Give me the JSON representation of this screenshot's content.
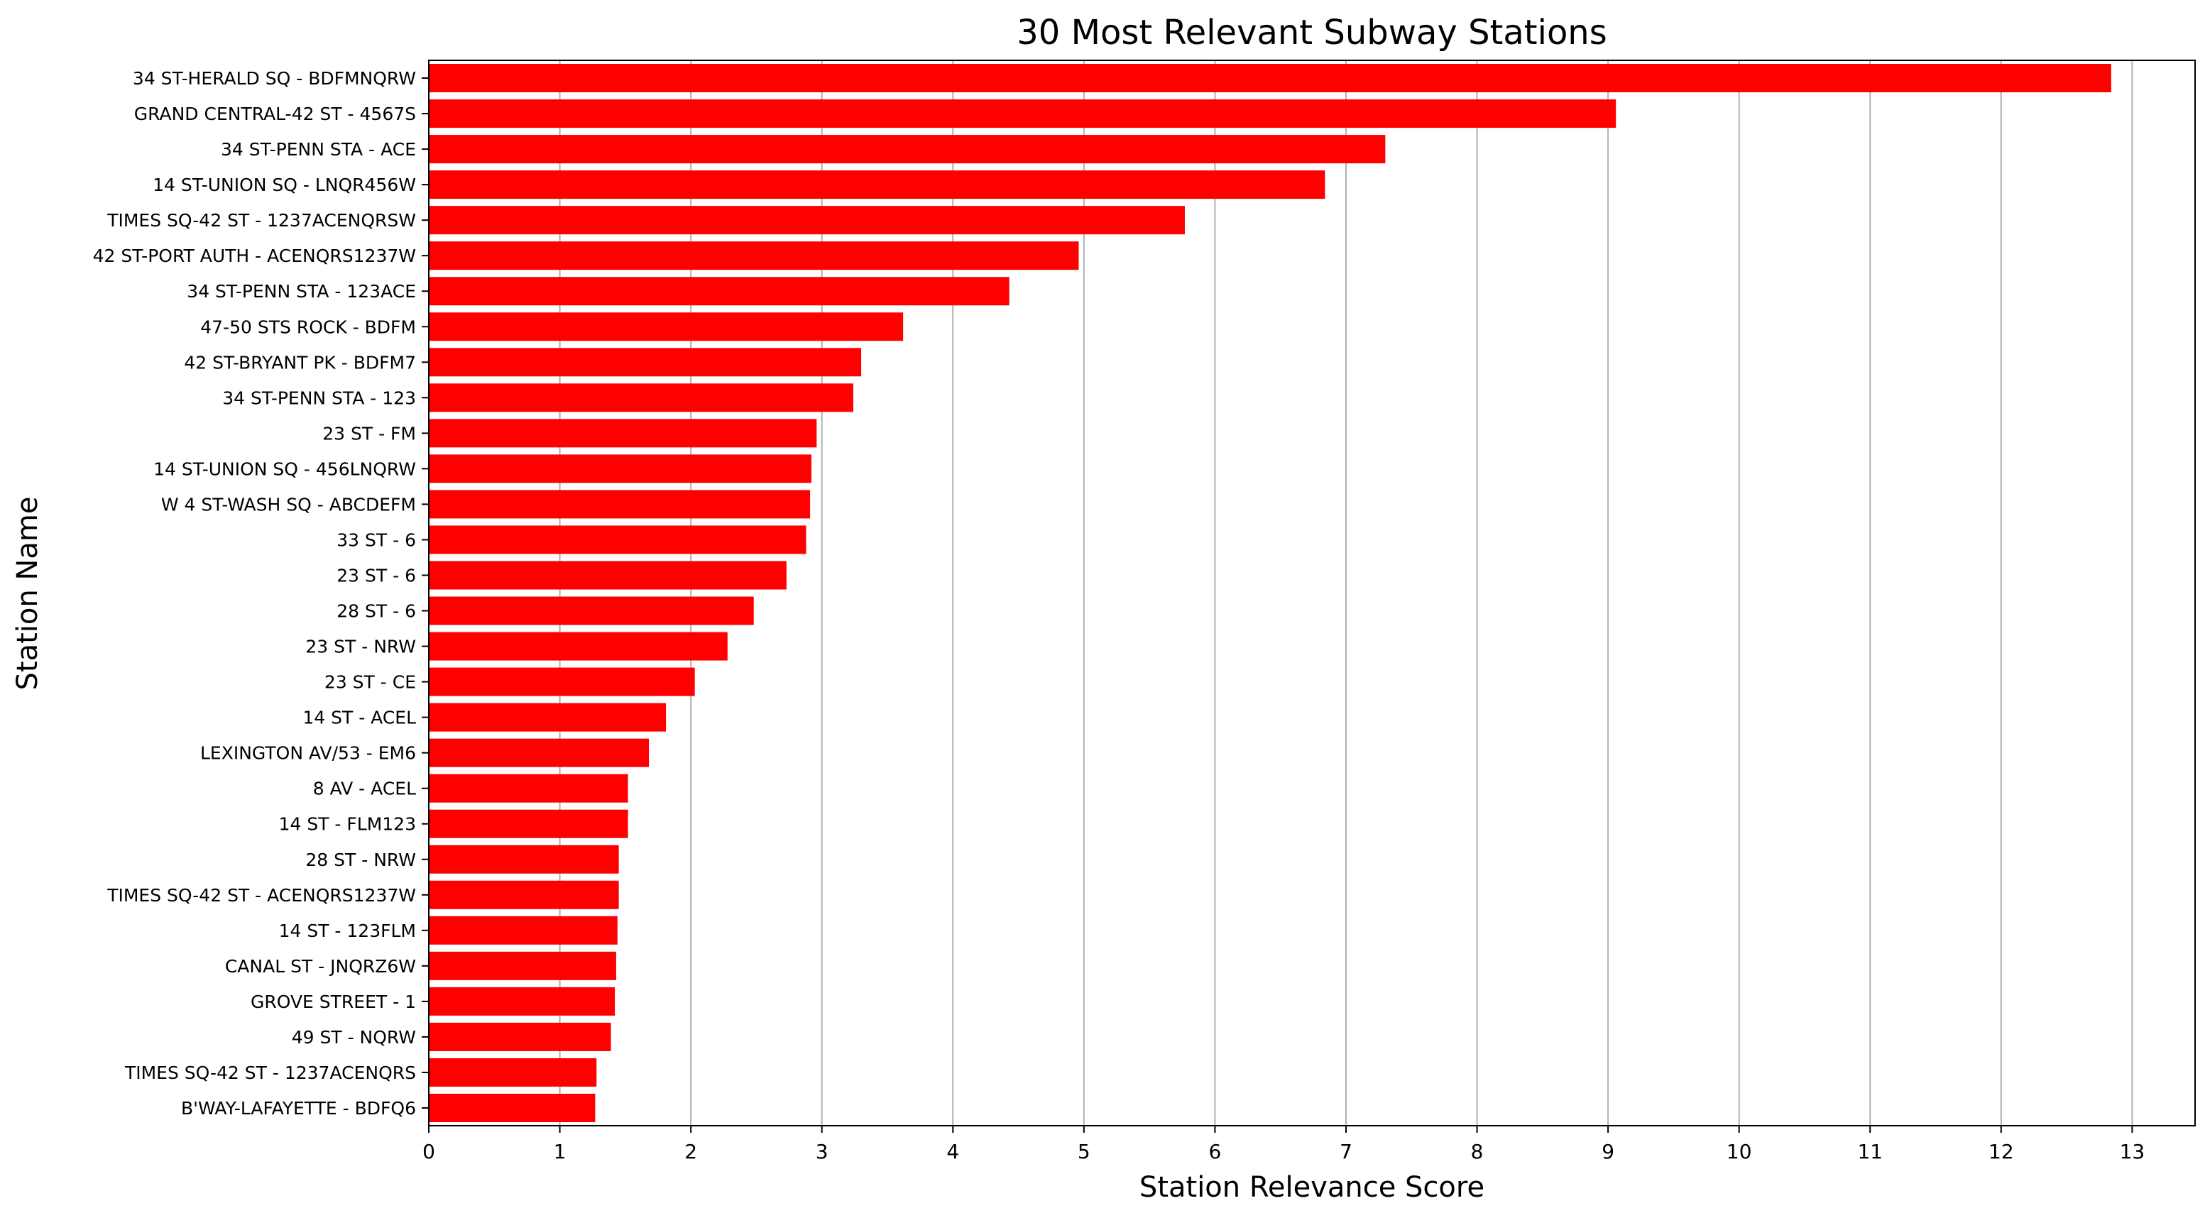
{
  "chart_data": {
    "type": "bar",
    "orientation": "horizontal",
    "title": "30 Most Relevant Subway Stations",
    "xlabel": "Station Relevance Score",
    "ylabel": "Station Name",
    "xlim": [
      0,
      13.48
    ],
    "xticks": [
      0,
      1,
      2,
      3,
      4,
      5,
      6,
      7,
      8,
      9,
      10,
      11,
      12,
      13
    ],
    "grid": "x",
    "bar_color": "#ff0000",
    "categories": [
      "34 ST-HERALD SQ - BDFMNQRW",
      "GRAND CENTRAL-42 ST - 4567S",
      "34 ST-PENN STA - ACE",
      "14 ST-UNION SQ - LNQR456W",
      "TIMES SQ-42 ST - 1237ACENQRSW",
      "42 ST-PORT AUTH - ACENQRS1237W",
      "34 ST-PENN STA - 123ACE",
      "47-50 STS ROCK - BDFM",
      "42 ST-BRYANT PK - BDFM7",
      "34 ST-PENN STA - 123",
      "23 ST - FM",
      "14 ST-UNION SQ - 456LNQRW",
      "W 4 ST-WASH SQ - ABCDEFM",
      "33 ST - 6",
      "23 ST - 6",
      "28 ST - 6",
      "23 ST - NRW",
      "23 ST - CE",
      "14 ST - ACEL",
      "LEXINGTON AV/53 - EM6",
      "8 AV - ACEL",
      "14 ST - FLM123",
      "28 ST - NRW",
      "TIMES SQ-42 ST - ACENQRS1237W",
      "14 ST - 123FLM",
      "CANAL ST - JNQRZ6W",
      "GROVE STREET - 1",
      "49 ST - NQRW",
      "TIMES SQ-42 ST - 1237ACENQRS",
      "B'WAY-LAFAYETTE - BDFQ6"
    ],
    "values": [
      12.84,
      9.06,
      7.3,
      6.84,
      5.77,
      4.96,
      4.43,
      3.62,
      3.3,
      3.24,
      2.96,
      2.92,
      2.91,
      2.88,
      2.73,
      2.48,
      2.28,
      2.03,
      1.81,
      1.68,
      1.52,
      1.52,
      1.45,
      1.45,
      1.44,
      1.43,
      1.42,
      1.39,
      1.28,
      1.27
    ]
  }
}
